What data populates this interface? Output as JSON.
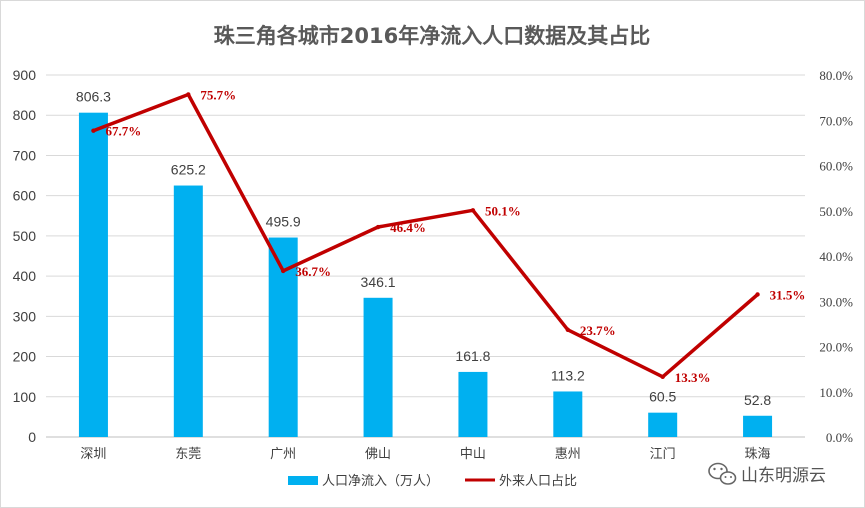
{
  "chart_data": {
    "type": "bar+line",
    "title": "珠三角各城市2016年净流入人口数据及其占比",
    "categories": [
      "深圳",
      "东莞",
      "广州",
      "佛山",
      "中山",
      "惠州",
      "江门",
      "珠海"
    ],
    "series": [
      {
        "name": "人口净流入（万人）",
        "type": "bar",
        "axis": "left",
        "color": "#00b0f0",
        "values": [
          806.3,
          625.2,
          495.9,
          346.1,
          161.8,
          113.2,
          60.5,
          52.8
        ],
        "labels": [
          "806.3",
          "625.2",
          "495.9",
          "346.1",
          "161.8",
          "113.2",
          "60.5",
          "52.8"
        ]
      },
      {
        "name": "外来人口占比",
        "type": "line",
        "axis": "right",
        "color": "#c00000",
        "values": [
          67.7,
          75.7,
          36.7,
          46.4,
          50.1,
          23.7,
          13.3,
          31.5
        ],
        "labels": [
          "67.7%",
          "75.7%",
          "36.7%",
          "46.4%",
          "50.1%",
          "23.7%",
          "13.3%",
          "31.5%"
        ]
      }
    ],
    "y_left": {
      "ylim": [
        0,
        900
      ],
      "ticks": [
        0,
        100,
        200,
        300,
        400,
        500,
        600,
        700,
        800,
        900
      ]
    },
    "y_right": {
      "ylim": [
        0,
        80
      ],
      "ticks": [
        0,
        10,
        20,
        30,
        40,
        50,
        60,
        70,
        80
      ],
      "tick_labels": [
        "0.0%",
        "10.0%",
        "20.0%",
        "30.0%",
        "40.0%",
        "50.0%",
        "60.0%",
        "70.0%",
        "80.0%"
      ]
    },
    "grid": true,
    "legend_position": "bottom"
  },
  "watermark": {
    "text": "山东明源云",
    "icon": "wechat-icon"
  }
}
